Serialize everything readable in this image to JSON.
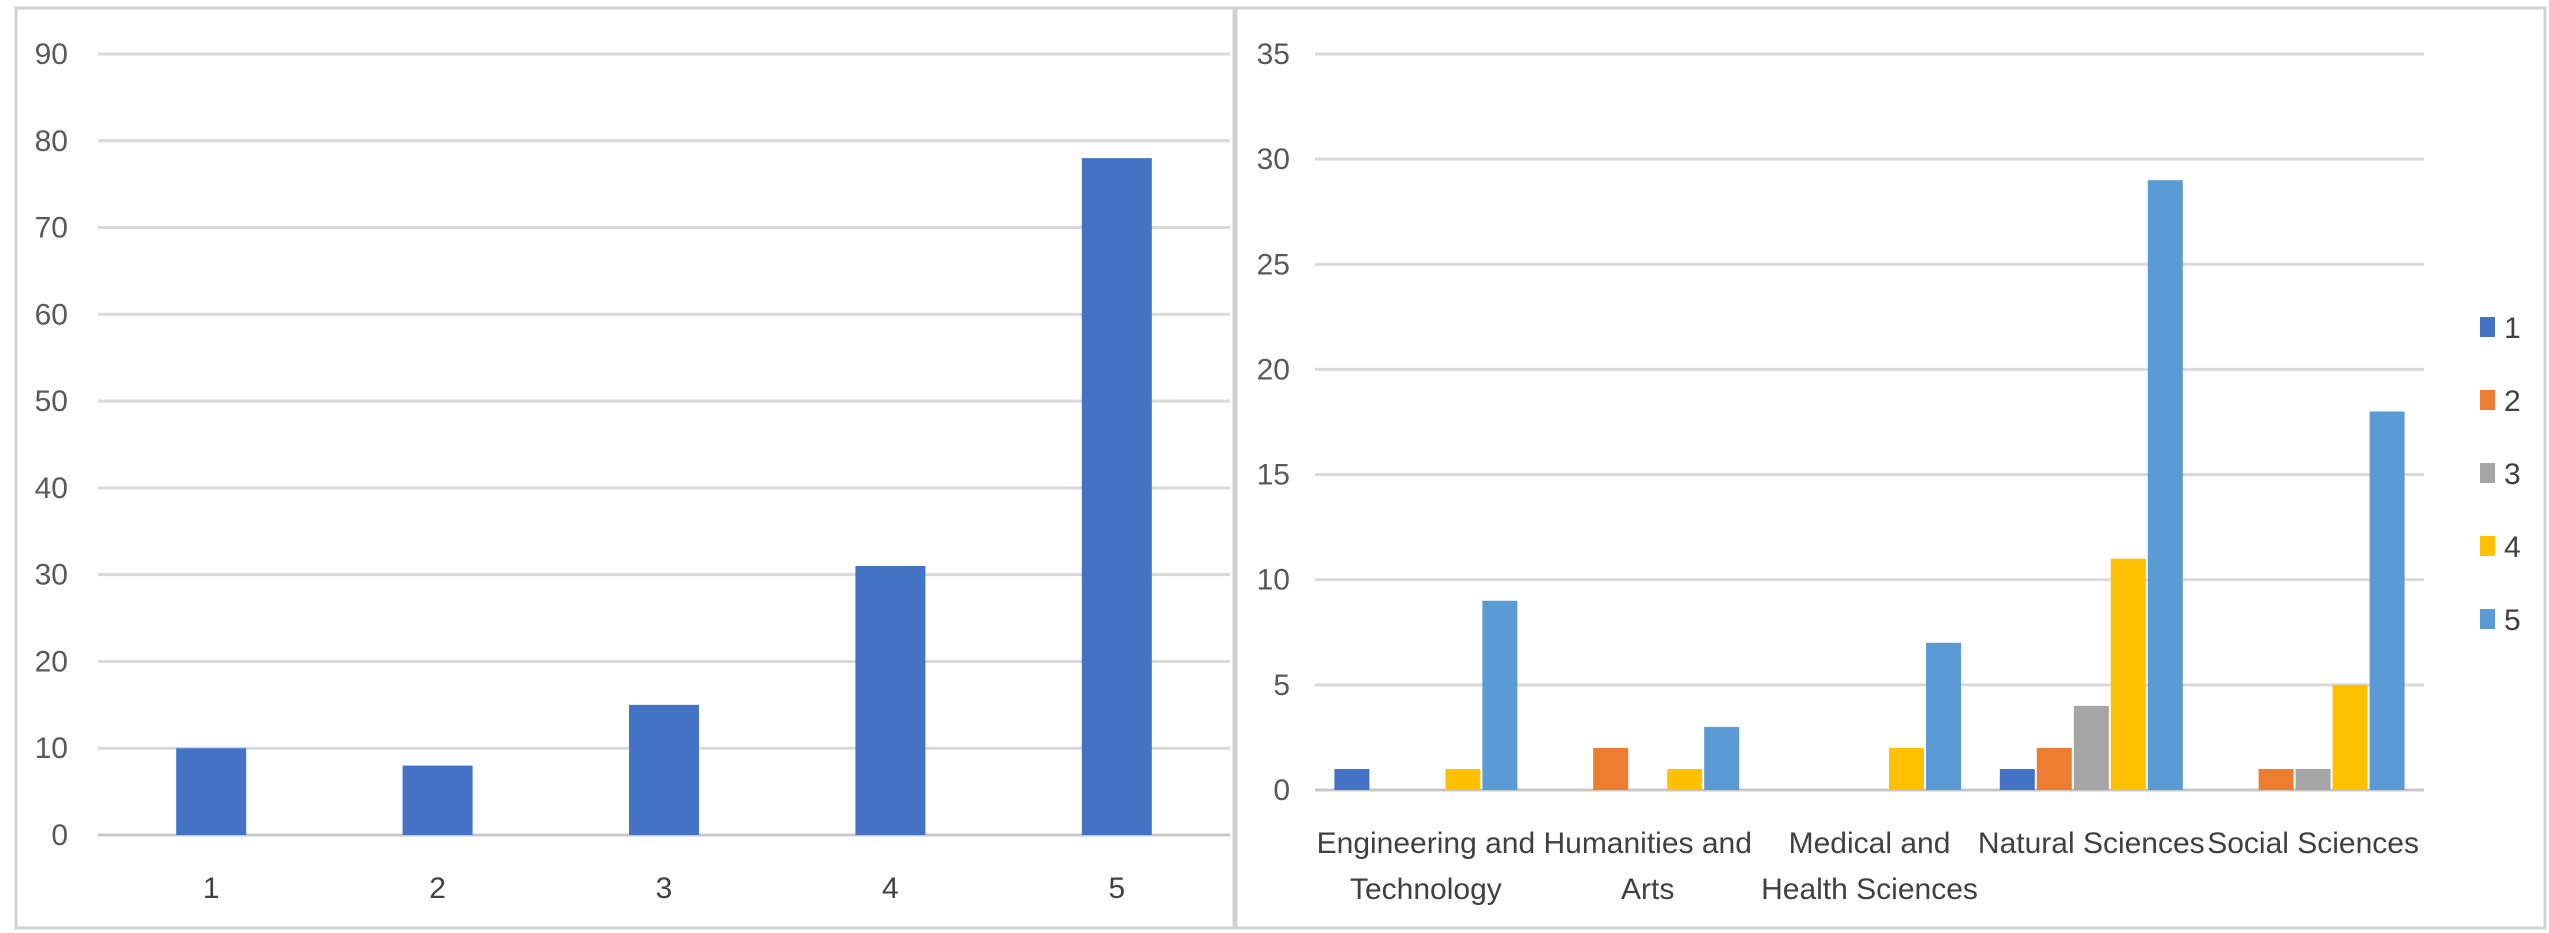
{
  "chart_data": [
    {
      "type": "bar",
      "categories": [
        "1",
        "2",
        "3",
        "4",
        "5"
      ],
      "values": [
        10,
        8,
        15,
        31,
        78
      ],
      "ylim": [
        0,
        90
      ],
      "yticks": [
        0,
        10,
        20,
        30,
        40,
        50,
        60,
        70,
        80,
        90
      ],
      "grid": true,
      "legend": "none",
      "colors": [
        "#4472C4"
      ]
    },
    {
      "type": "bar",
      "categories": [
        [
          "Engineering and",
          "Technology"
        ],
        [
          "Humanities and",
          "Arts"
        ],
        [
          "Medical and",
          "Health Sciences"
        ],
        [
          "Natural Sciences"
        ],
        [
          "Social Sciences"
        ]
      ],
      "series": [
        {
          "name": "1",
          "values": [
            1,
            0,
            0,
            1,
            0
          ],
          "color": "#4472C4"
        },
        {
          "name": "2",
          "values": [
            0,
            2,
            0,
            2,
            1
          ],
          "color": "#ED7D31"
        },
        {
          "name": "3",
          "values": [
            0,
            0,
            0,
            4,
            1
          ],
          "color": "#A5A5A5"
        },
        {
          "name": "4",
          "values": [
            1,
            1,
            2,
            11,
            5
          ],
          "color": "#FFC000"
        },
        {
          "name": "5",
          "values": [
            9,
            3,
            7,
            29,
            18
          ],
          "color": "#5B9BD5"
        }
      ],
      "ylim": [
        0,
        35
      ],
      "yticks": [
        0,
        5,
        10,
        15,
        20,
        25,
        30,
        35
      ],
      "grid": true,
      "legend": "right"
    }
  ]
}
